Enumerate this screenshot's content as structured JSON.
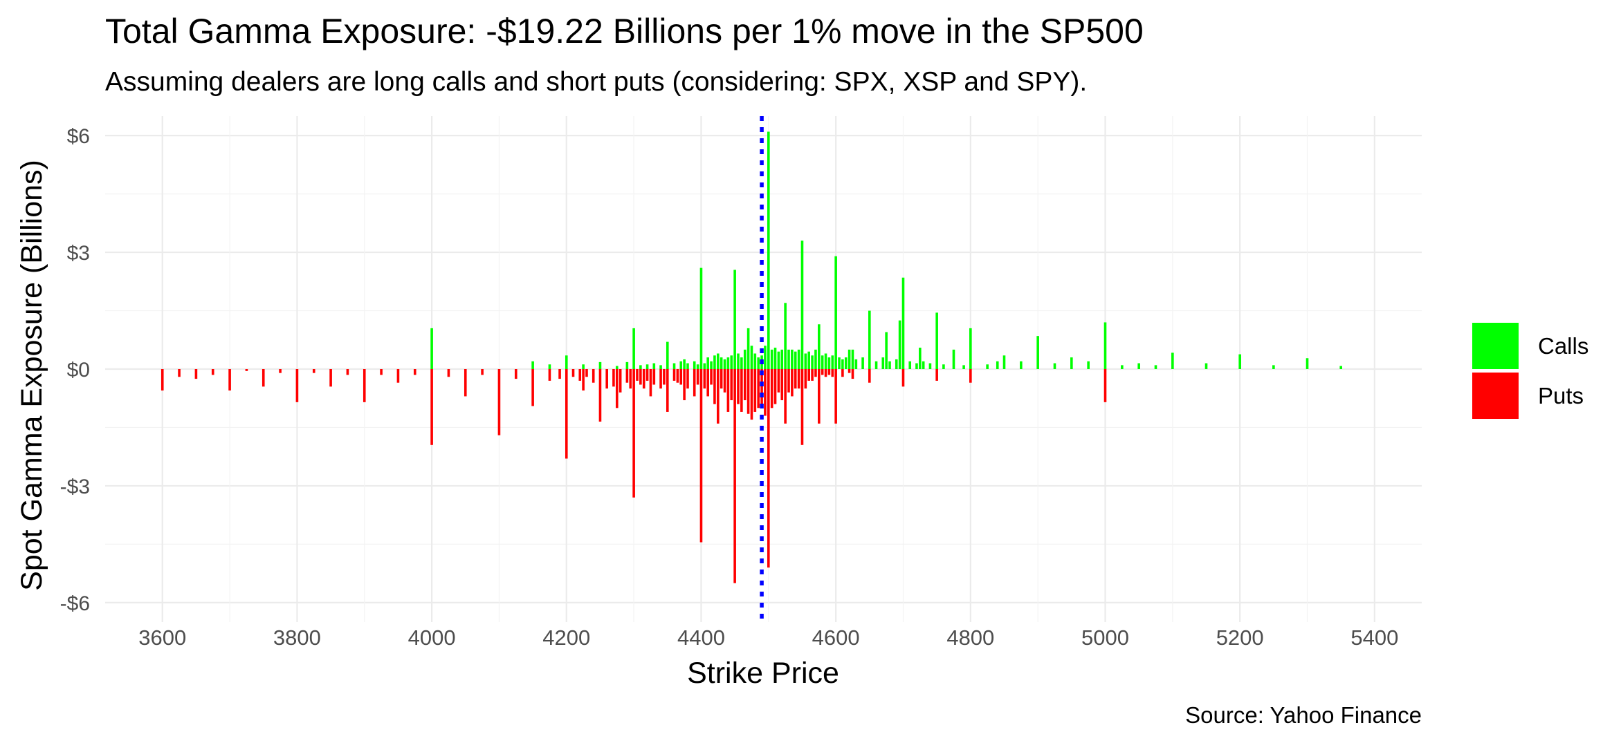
{
  "chart_data": {
    "type": "bar",
    "title": "Total Gamma Exposure: -$19.22 Billions per 1% move in the SP500",
    "subtitle": "Assuming dealers are long calls and short puts (considering: SPX, XSP and SPY).",
    "xlabel": "Strike Price",
    "ylabel": "Spot Gamma Exposure (Billions)",
    "caption": "Source: Yahoo Finance",
    "xlim": [
      3515,
      5470
    ],
    "ylim": [
      -6.5,
      6.5
    ],
    "x_ticks": [
      3600,
      3800,
      4000,
      4200,
      4400,
      4600,
      4800,
      5000,
      5200,
      5400
    ],
    "x_tick_labels": [
      "3600",
      "3800",
      "4000",
      "4200",
      "4400",
      "4600",
      "4800",
      "5000",
      "5200",
      "5400"
    ],
    "y_ticks": [
      -6,
      -3,
      0,
      3,
      6
    ],
    "y_tick_labels": [
      "-$6",
      "-$3",
      "$0",
      "$3",
      "$6"
    ],
    "grid": true,
    "legend_position": "right",
    "spot_price": 4490,
    "spot_line_color": "#0000ff",
    "series": [
      {
        "name": "Calls",
        "color": "#00ff00",
        "points": [
          [
            4000,
            1.05
          ],
          [
            4150,
            0.2
          ],
          [
            4175,
            0.12
          ],
          [
            4200,
            0.35
          ],
          [
            4225,
            0.12
          ],
          [
            4250,
            0.18
          ],
          [
            4275,
            0.08
          ],
          [
            4290,
            0.18
          ],
          [
            4300,
            1.05
          ],
          [
            4310,
            0.1
          ],
          [
            4320,
            0.12
          ],
          [
            4330,
            0.15
          ],
          [
            4340,
            0.1
          ],
          [
            4350,
            0.7
          ],
          [
            4360,
            0.15
          ],
          [
            4370,
            0.2
          ],
          [
            4375,
            0.25
          ],
          [
            4380,
            0.15
          ],
          [
            4390,
            0.2
          ],
          [
            4395,
            0.12
          ],
          [
            4400,
            2.6
          ],
          [
            4405,
            0.15
          ],
          [
            4410,
            0.3
          ],
          [
            4415,
            0.2
          ],
          [
            4420,
            0.35
          ],
          [
            4425,
            0.4
          ],
          [
            4430,
            0.3
          ],
          [
            4435,
            0.25
          ],
          [
            4440,
            0.3
          ],
          [
            4445,
            0.35
          ],
          [
            4450,
            2.55
          ],
          [
            4455,
            0.4
          ],
          [
            4460,
            0.3
          ],
          [
            4465,
            0.5
          ],
          [
            4470,
            1.05
          ],
          [
            4475,
            0.6
          ],
          [
            4480,
            0.4
          ],
          [
            4485,
            0.3
          ],
          [
            4490,
            0.35
          ],
          [
            4495,
            0.6
          ],
          [
            4500,
            6.1
          ],
          [
            4505,
            0.5
          ],
          [
            4510,
            0.55
          ],
          [
            4515,
            0.45
          ],
          [
            4520,
            0.5
          ],
          [
            4525,
            1.7
          ],
          [
            4530,
            0.5
          ],
          [
            4535,
            0.5
          ],
          [
            4540,
            0.45
          ],
          [
            4545,
            0.5
          ],
          [
            4550,
            3.3
          ],
          [
            4555,
            0.4
          ],
          [
            4560,
            0.45
          ],
          [
            4565,
            0.35
          ],
          [
            4570,
            0.5
          ],
          [
            4575,
            1.15
          ],
          [
            4580,
            0.35
          ],
          [
            4585,
            0.4
          ],
          [
            4590,
            0.3
          ],
          [
            4595,
            0.35
          ],
          [
            4600,
            2.9
          ],
          [
            4605,
            0.3
          ],
          [
            4610,
            0.25
          ],
          [
            4615,
            0.3
          ],
          [
            4620,
            0.5
          ],
          [
            4625,
            0.5
          ],
          [
            4630,
            0.25
          ],
          [
            4640,
            0.3
          ],
          [
            4650,
            1.5
          ],
          [
            4660,
            0.2
          ],
          [
            4670,
            0.3
          ],
          [
            4675,
            0.95
          ],
          [
            4680,
            0.2
          ],
          [
            4690,
            0.25
          ],
          [
            4695,
            1.25
          ],
          [
            4700,
            2.35
          ],
          [
            4710,
            0.2
          ],
          [
            4720,
            0.15
          ],
          [
            4725,
            0.55
          ],
          [
            4730,
            0.2
          ],
          [
            4740,
            0.15
          ],
          [
            4750,
            1.45
          ],
          [
            4760,
            0.12
          ],
          [
            4775,
            0.5
          ],
          [
            4790,
            0.1
          ],
          [
            4800,
            1.05
          ],
          [
            4825,
            0.12
          ],
          [
            4840,
            0.2
          ],
          [
            4850,
            0.35
          ],
          [
            4875,
            0.2
          ],
          [
            4900,
            0.85
          ],
          [
            4925,
            0.15
          ],
          [
            4950,
            0.3
          ],
          [
            4975,
            0.2
          ],
          [
            5000,
            1.2
          ],
          [
            5025,
            0.1
          ],
          [
            5050,
            0.15
          ],
          [
            5075,
            0.1
          ],
          [
            5100,
            0.42
          ],
          [
            5150,
            0.15
          ],
          [
            5200,
            0.38
          ],
          [
            5250,
            0.1
          ],
          [
            5300,
            0.28
          ],
          [
            5350,
            0.08
          ]
        ]
      },
      {
        "name": "Puts",
        "color": "#ff0000",
        "points": [
          [
            3600,
            -0.55
          ],
          [
            3625,
            -0.2
          ],
          [
            3650,
            -0.25
          ],
          [
            3675,
            -0.15
          ],
          [
            3700,
            -0.55
          ],
          [
            3725,
            -0.05
          ],
          [
            3750,
            -0.45
          ],
          [
            3775,
            -0.1
          ],
          [
            3800,
            -0.85
          ],
          [
            3825,
            -0.1
          ],
          [
            3850,
            -0.45
          ],
          [
            3875,
            -0.15
          ],
          [
            3900,
            -0.85
          ],
          [
            3925,
            -0.15
          ],
          [
            3950,
            -0.35
          ],
          [
            3975,
            -0.15
          ],
          [
            4000,
            -1.95
          ],
          [
            4025,
            -0.2
          ],
          [
            4050,
            -0.7
          ],
          [
            4075,
            -0.15
          ],
          [
            4100,
            -1.7
          ],
          [
            4125,
            -0.25
          ],
          [
            4150,
            -0.95
          ],
          [
            4175,
            -0.3
          ],
          [
            4190,
            -0.25
          ],
          [
            4200,
            -2.3
          ],
          [
            4210,
            -0.2
          ],
          [
            4220,
            -0.3
          ],
          [
            4225,
            -0.55
          ],
          [
            4230,
            -0.2
          ],
          [
            4240,
            -0.35
          ],
          [
            4250,
            -1.35
          ],
          [
            4260,
            -0.5
          ],
          [
            4270,
            -0.45
          ],
          [
            4275,
            -1.0
          ],
          [
            4280,
            -0.6
          ],
          [
            4290,
            -0.35
          ],
          [
            4295,
            -0.5
          ],
          [
            4300,
            -3.3
          ],
          [
            4305,
            -0.3
          ],
          [
            4310,
            -0.4
          ],
          [
            4315,
            -0.5
          ],
          [
            4320,
            -0.3
          ],
          [
            4325,
            -0.7
          ],
          [
            4330,
            -0.4
          ],
          [
            4340,
            -0.5
          ],
          [
            4345,
            -0.4
          ],
          [
            4350,
            -1.1
          ],
          [
            4360,
            -0.3
          ],
          [
            4365,
            -0.35
          ],
          [
            4370,
            -0.4
          ],
          [
            4375,
            -0.8
          ],
          [
            4380,
            -0.5
          ],
          [
            4390,
            -0.7
          ],
          [
            4395,
            -0.4
          ],
          [
            4400,
            -4.45
          ],
          [
            4405,
            -0.5
          ],
          [
            4410,
            -0.7
          ],
          [
            4415,
            -0.4
          ],
          [
            4420,
            -0.9
          ],
          [
            4425,
            -1.4
          ],
          [
            4430,
            -0.5
          ],
          [
            4435,
            -0.6
          ],
          [
            4440,
            -1.1
          ],
          [
            4445,
            -0.8
          ],
          [
            4450,
            -5.5
          ],
          [
            4455,
            -0.9
          ],
          [
            4460,
            -1.1
          ],
          [
            4465,
            -0.8
          ],
          [
            4470,
            -1.15
          ],
          [
            4475,
            -1.3
          ],
          [
            4480,
            -1.1
          ],
          [
            4485,
            -1.0
          ],
          [
            4490,
            -1.0
          ],
          [
            4495,
            -1.2
          ],
          [
            4500,
            -5.1
          ],
          [
            4505,
            -1.0
          ],
          [
            4510,
            -0.9
          ],
          [
            4515,
            -0.6
          ],
          [
            4520,
            -0.8
          ],
          [
            4525,
            -1.4
          ],
          [
            4530,
            -0.6
          ],
          [
            4535,
            -0.7
          ],
          [
            4540,
            -0.5
          ],
          [
            4545,
            -0.5
          ],
          [
            4550,
            -1.95
          ],
          [
            4555,
            -0.5
          ],
          [
            4560,
            -0.3
          ],
          [
            4565,
            -0.3
          ],
          [
            4570,
            -0.2
          ],
          [
            4575,
            -1.4
          ],
          [
            4580,
            -0.15
          ],
          [
            4585,
            -0.2
          ],
          [
            4590,
            -0.15
          ],
          [
            4595,
            -0.2
          ],
          [
            4600,
            -1.4
          ],
          [
            4610,
            -0.2
          ],
          [
            4620,
            -0.1
          ],
          [
            4625,
            -0.25
          ],
          [
            4650,
            -0.35
          ],
          [
            4700,
            -0.45
          ],
          [
            4750,
            -0.3
          ],
          [
            4800,
            -0.35
          ],
          [
            5000,
            -0.85
          ]
        ]
      }
    ]
  },
  "legend": {
    "items": [
      {
        "label": "Calls",
        "color": "#00ff00"
      },
      {
        "label": "Puts",
        "color": "#ff0000"
      }
    ]
  }
}
